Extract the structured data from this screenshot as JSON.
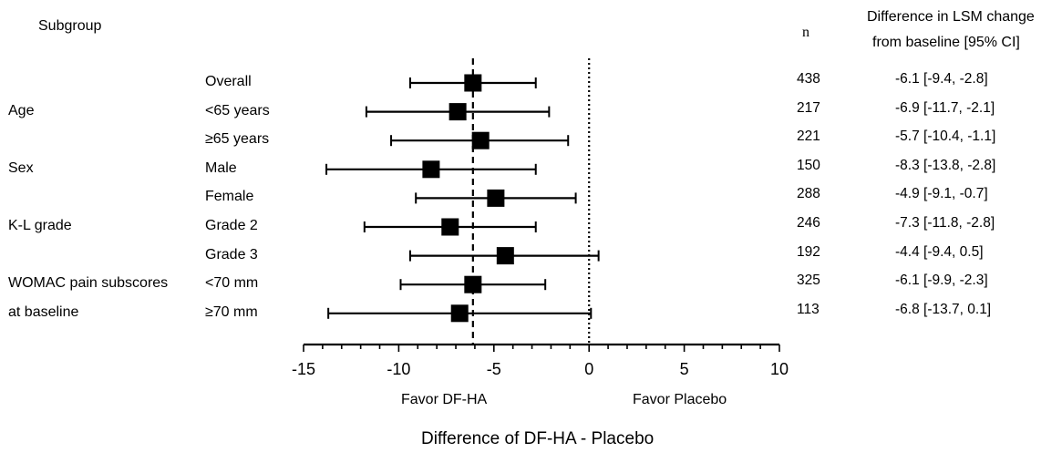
{
  "header": {
    "subgroup": "Subgroup",
    "n": "n",
    "diff_line1": "Difference in LSM change",
    "diff_line2": "from baseline [95% CI]"
  },
  "groups": [
    {
      "label": "Age",
      "row": 1
    },
    {
      "label": "Sex",
      "row": 3
    },
    {
      "label": "K-L grade",
      "row": 5
    },
    {
      "label": "WOMAC pain subscores",
      "row": 7
    },
    {
      "label": "at baseline",
      "row": 8
    }
  ],
  "chart_data": {
    "type": "forest",
    "rows": [
      {
        "label": "Overall",
        "n": "438",
        "estimate": -6.1,
        "lower": -9.4,
        "upper": -2.8,
        "ci_text": "-6.1 [-9.4, -2.8]"
      },
      {
        "label": "<65 years",
        "n": "217",
        "estimate": -6.9,
        "lower": -11.7,
        "upper": -2.1,
        "ci_text": "-6.9 [-11.7, -2.1]"
      },
      {
        "label": "≥65 years",
        "n": "221",
        "estimate": -5.7,
        "lower": -10.4,
        "upper": -1.1,
        "ci_text": "-5.7 [-10.4, -1.1]"
      },
      {
        "label": "Male",
        "n": "150",
        "estimate": -8.3,
        "lower": -13.8,
        "upper": -2.8,
        "ci_text": "-8.3 [-13.8, -2.8]"
      },
      {
        "label": "Female",
        "n": "288",
        "estimate": -4.9,
        "lower": -9.1,
        "upper": -0.7,
        "ci_text": "-4.9 [-9.1, -0.7]"
      },
      {
        "label": "Grade 2",
        "n": "246",
        "estimate": -7.3,
        "lower": -11.8,
        "upper": -2.8,
        "ci_text": "-7.3 [-11.8, -2.8]"
      },
      {
        "label": "Grade 3",
        "n": "192",
        "estimate": -4.4,
        "lower": -9.4,
        "upper": 0.5,
        "ci_text": "-4.4 [-9.4, 0.5]"
      },
      {
        "label": "<70 mm",
        "n": "325",
        "estimate": -6.1,
        "lower": -9.9,
        "upper": -2.3,
        "ci_text": "-6.1 [-9.9, -2.3]"
      },
      {
        "label": "≥70 mm",
        "n": "113",
        "estimate": -6.8,
        "lower": -13.7,
        "upper": 0.1,
        "ci_text": "-6.8 [-13.7, 0.1]"
      }
    ],
    "xlim": [
      -15,
      10
    ],
    "xticks": [
      -15,
      -10,
      -5,
      0,
      5,
      10
    ],
    "xtick_labels": [
      "-15",
      "-10",
      "-5",
      "0",
      "5",
      "10"
    ],
    "reference_lines": [
      {
        "value": -6.1,
        "style": "dashed"
      },
      {
        "value": 0,
        "style": "dotted"
      }
    ],
    "favor_left": "Favor DF-HA",
    "favor_right": "Favor Placebo",
    "xlabel": "Difference of DF-HA - Placebo"
  }
}
